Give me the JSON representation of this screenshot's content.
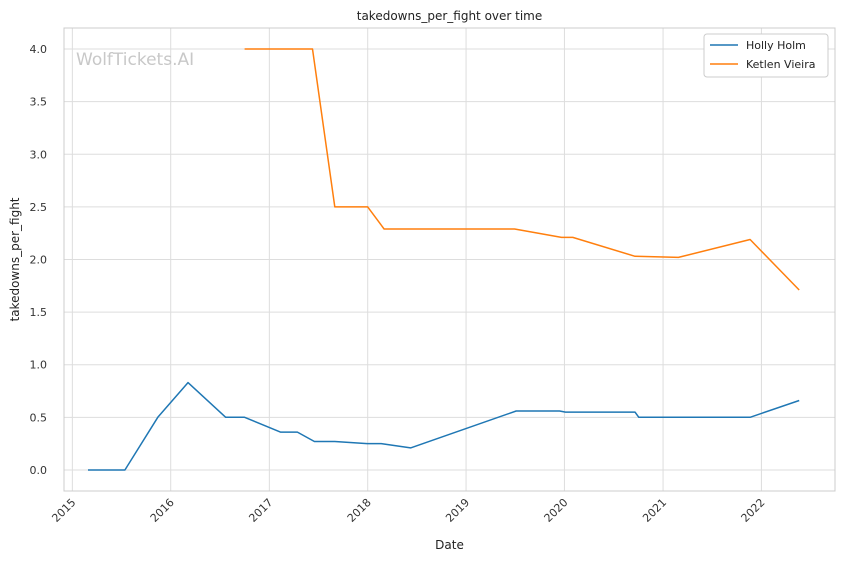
{
  "chart_data": {
    "type": "line",
    "title": "takedowns_per_fight over time",
    "xlabel": "Date",
    "ylabel": "takedowns_per_fight",
    "watermark": "WolfTickets.AI",
    "xlim": [
      "2014-12-01",
      "2022-10-01"
    ],
    "ylim": [
      -0.2,
      4.2
    ],
    "x_ticks": [
      "2015",
      "2016",
      "2017",
      "2018",
      "2019",
      "2020",
      "2021",
      "2022"
    ],
    "y_ticks": [
      "0.0",
      "0.5",
      "1.0",
      "1.5",
      "2.0",
      "2.5",
      "3.0",
      "3.5",
      "4.0"
    ],
    "grid": true,
    "legend_position": "top-right",
    "series": [
      {
        "name": "Holly Holm",
        "color": "#1f77b4",
        "points": [
          [
            "2015-02-28",
            0.0
          ],
          [
            "2015-07-15",
            0.0
          ],
          [
            "2015-11-14",
            0.5
          ],
          [
            "2016-03-05",
            0.83
          ],
          [
            "2016-07-23",
            0.5
          ],
          [
            "2016-10-01",
            0.5
          ],
          [
            "2017-02-11",
            0.36
          ],
          [
            "2017-04-15",
            0.36
          ],
          [
            "2017-06-17",
            0.27
          ],
          [
            "2017-09-01",
            0.27
          ],
          [
            "2017-12-30",
            0.25
          ],
          [
            "2018-02-20",
            0.25
          ],
          [
            "2018-06-09",
            0.21
          ],
          [
            "2019-07-06",
            0.56
          ],
          [
            "2019-12-14",
            0.56
          ],
          [
            "2020-01-05",
            0.55
          ],
          [
            "2020-09-19",
            0.55
          ],
          [
            "2020-10-03",
            0.5
          ],
          [
            "2021-11-20",
            0.5
          ],
          [
            "2022-05-21",
            0.66
          ]
        ]
      },
      {
        "name": "Ketlen Vieira",
        "color": "#ff7f0e",
        "points": [
          [
            "2016-10-01",
            4.0
          ],
          [
            "2017-06-10",
            4.0
          ],
          [
            "2017-09-01",
            2.5
          ],
          [
            "2018-01-01",
            2.5
          ],
          [
            "2018-03-03",
            2.29
          ],
          [
            "2019-06-30",
            2.29
          ],
          [
            "2019-12-21",
            2.21
          ],
          [
            "2020-02-01",
            2.21
          ],
          [
            "2020-09-19",
            2.03
          ],
          [
            "2021-02-27",
            2.02
          ],
          [
            "2021-11-20",
            2.19
          ],
          [
            "2022-05-21",
            1.71
          ]
        ]
      }
    ]
  }
}
